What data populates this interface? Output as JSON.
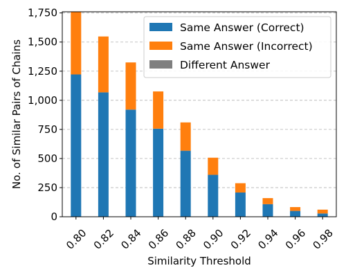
{
  "chart_data": {
    "type": "bar",
    "stacked": true,
    "categories": [
      "0.80",
      "0.82",
      "0.84",
      "0.86",
      "0.88",
      "0.90",
      "0.92",
      "0.94",
      "0.96",
      "0.98"
    ],
    "series": [
      {
        "name": "Same Answer (Correct)",
        "color": "#1f77b4",
        "values": [
          1222,
          1068,
          920,
          756,
          567,
          360,
          208,
          108,
          50,
          28
        ]
      },
      {
        "name": "Same Answer (Incorrect)",
        "color": "#ff7f0e",
        "values": [
          540,
          480,
          405,
          320,
          243,
          147,
          80,
          52,
          33,
          33
        ]
      },
      {
        "name": "Different Answer",
        "color": "#7f7f7f",
        "values": [
          0,
          0,
          0,
          0,
          0,
          0,
          0,
          0,
          0,
          0
        ]
      }
    ],
    "xlabel": "Similarity Threshold",
    "ylabel": "No. of Similar Pairs of Chains",
    "ylim": [
      0,
      1760
    ],
    "yticks": [
      0,
      250,
      500,
      750,
      1000,
      1250,
      1500,
      1750
    ],
    "grid": "y-dashed",
    "legend_position": "top-right"
  }
}
